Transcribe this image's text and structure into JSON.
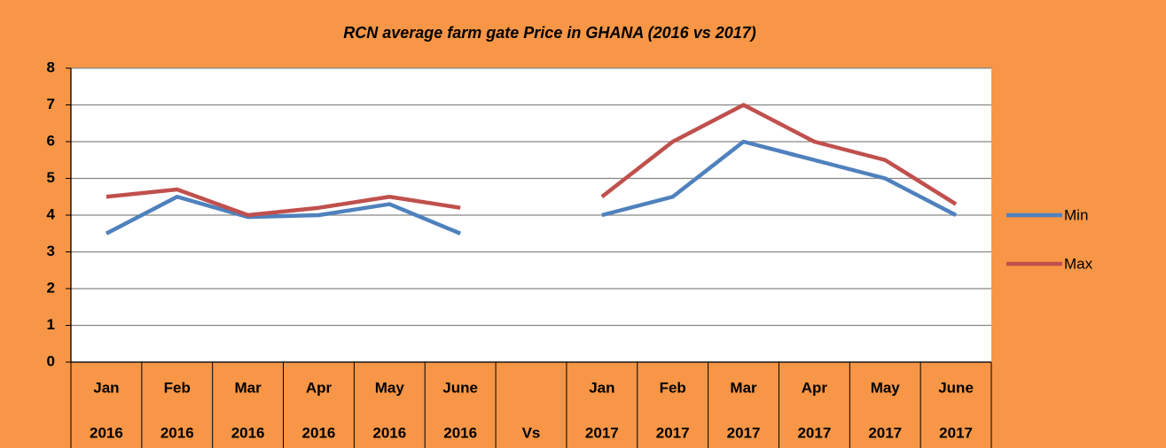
{
  "chart_data": {
    "type": "line",
    "title": "RCN average farm gate Price in GHANA (2016 vs 2017)",
    "categories": [
      "Jan",
      "Feb",
      "Mar",
      "Apr",
      "May",
      "June",
      null,
      "Jan",
      "Feb",
      "Mar",
      "Apr",
      "May",
      "June"
    ],
    "category_years": [
      "2016",
      "2016",
      "2016",
      "2016",
      "2016",
      "2016",
      "Vs",
      "2017",
      "2017",
      "2017",
      "2017",
      "2017",
      "2017"
    ],
    "series": [
      {
        "name": "Min",
        "color": "#4F81BD",
        "values": [
          3.5,
          4.5,
          3.95,
          4,
          4.3,
          3.5,
          null,
          4,
          4.5,
          6,
          5.5,
          5,
          4
        ]
      },
      {
        "name": "Max",
        "color": "#C0504D",
        "values": [
          4.5,
          4.7,
          4,
          4.2,
          4.5,
          4.2,
          null,
          4.5,
          6,
          7,
          6,
          5.5,
          4.3
        ]
      }
    ],
    "ylim": [
      0,
      8
    ],
    "yticks": [
      0,
      1,
      2,
      3,
      4,
      5,
      6,
      7,
      8
    ],
    "grid": true,
    "legend": "right"
  }
}
